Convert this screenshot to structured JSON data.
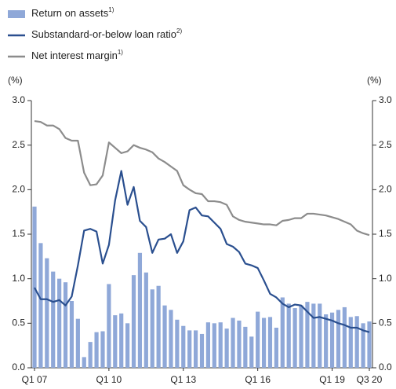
{
  "chart_data": {
    "type": "bar-line",
    "unit_left": "(%)",
    "unit_right": "(%)",
    "categories": [
      "Q1 07",
      null,
      null,
      null,
      null,
      null,
      null,
      null,
      null,
      null,
      null,
      null,
      "Q1 10",
      null,
      null,
      null,
      null,
      null,
      null,
      null,
      null,
      null,
      null,
      null,
      "Q1 13",
      null,
      null,
      null,
      null,
      null,
      null,
      null,
      null,
      null,
      null,
      null,
      "Q1 16",
      null,
      null,
      null,
      null,
      null,
      null,
      null,
      null,
      null,
      null,
      null,
      "Q1 19",
      null,
      null,
      null,
      null,
      null,
      "Q3 20"
    ],
    "series": [
      {
        "name": "Return on assets",
        "note": "1)",
        "kind": "bar",
        "color": "#8fa8d8",
        "values": [
          1.81,
          1.4,
          1.23,
          1.08,
          1.0,
          0.96,
          0.75,
          0.55,
          0.12,
          0.29,
          0.4,
          0.41,
          0.94,
          0.59,
          0.61,
          0.5,
          1.04,
          1.29,
          1.07,
          0.88,
          0.92,
          0.7,
          0.65,
          0.54,
          0.47,
          0.42,
          0.42,
          0.38,
          0.51,
          0.5,
          0.51,
          0.44,
          0.56,
          0.53,
          0.46,
          0.35,
          0.63,
          0.56,
          0.57,
          0.45,
          0.79,
          0.72,
          0.67,
          0.7,
          0.74,
          0.72,
          0.72,
          0.6,
          0.62,
          0.65,
          0.68,
          0.57,
          0.58,
          0.5,
          0.52
        ]
      },
      {
        "name": "Substandard-or-below loan ratio",
        "note": "2)",
        "kind": "line",
        "color": "#2a4f8f",
        "values": [
          0.9,
          0.77,
          0.77,
          0.74,
          0.76,
          0.7,
          0.8,
          1.15,
          1.54,
          1.56,
          1.53,
          1.17,
          1.38,
          1.88,
          2.21,
          1.83,
          2.03,
          1.65,
          1.58,
          1.29,
          1.44,
          1.45,
          1.5,
          1.29,
          1.42,
          1.77,
          1.8,
          1.71,
          1.7,
          1.63,
          1.56,
          1.39,
          1.36,
          1.3,
          1.17,
          1.15,
          1.12,
          0.98,
          0.83,
          0.79,
          0.72,
          0.68,
          0.71,
          0.7,
          0.63,
          0.56,
          0.57,
          0.55,
          0.53,
          0.5,
          0.48,
          0.45,
          0.45,
          0.42,
          0.4
        ]
      },
      {
        "name": "Net interest margin",
        "note": "1)",
        "kind": "line",
        "color": "#8c8c8c",
        "values": [
          2.77,
          2.76,
          2.72,
          2.72,
          2.68,
          2.58,
          2.55,
          2.55,
          2.19,
          2.05,
          2.06,
          2.16,
          2.53,
          2.47,
          2.41,
          2.43,
          2.5,
          2.47,
          2.45,
          2.42,
          2.35,
          2.31,
          2.26,
          2.21,
          2.05,
          2.0,
          1.96,
          1.95,
          1.87,
          1.87,
          1.86,
          1.83,
          1.7,
          1.66,
          1.64,
          1.63,
          1.62,
          1.61,
          1.61,
          1.6,
          1.65,
          1.66,
          1.68,
          1.68,
          1.73,
          1.73,
          1.72,
          1.71,
          1.69,
          1.67,
          1.64,
          1.61,
          1.54,
          1.51,
          1.49
        ]
      }
    ],
    "ylim": [
      0,
      3
    ],
    "yticks": [
      {
        "value": 0,
        "label": "0.0"
      },
      0.5,
      {
        "value": 1,
        "label": "1.0"
      },
      1.5,
      {
        "value": 2,
        "label": "2.0"
      },
      2.5,
      {
        "value": 3,
        "label": "3.0"
      }
    ],
    "y2lim": [
      0,
      3
    ],
    "y2ticks": [
      {
        "value": 0,
        "label": "0.0"
      },
      0.5,
      {
        "value": 1,
        "label": "1.0"
      },
      1.5,
      {
        "value": 2,
        "label": "2.0"
      },
      2.5,
      {
        "value": 3,
        "label": "3.0"
      }
    ]
  }
}
